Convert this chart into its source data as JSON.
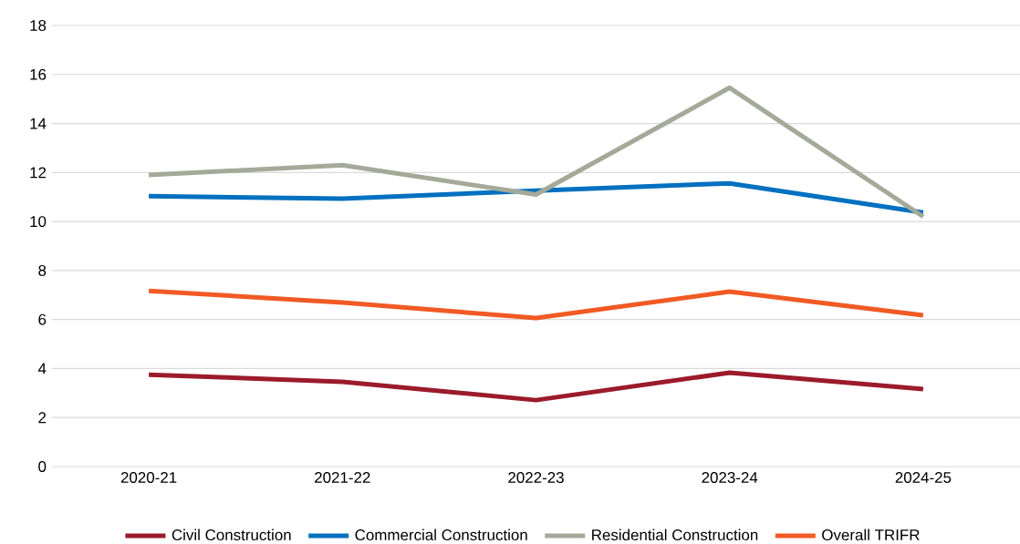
{
  "chart_data": {
    "type": "line",
    "categories": [
      "2020-21",
      "2021-22",
      "2022-23",
      "2023-24",
      "2024-25"
    ],
    "series": [
      {
        "name": "Civil Construction",
        "color": "#9b1b2a",
        "values": [
          3.75,
          3.46,
          2.71,
          3.83,
          3.16
        ]
      },
      {
        "name": "Commercial Construction",
        "color": "#0070c0",
        "values": [
          11.04,
          10.93,
          11.26,
          11.56,
          10.37
        ]
      },
      {
        "name": "Residential Construction",
        "color": "#a5a999",
        "values": [
          11.9,
          12.3,
          11.1,
          15.46,
          10.2
        ]
      },
      {
        "name": "Overall TRIFR",
        "color": "#f15a24",
        "values": [
          7.17,
          6.69,
          6.06,
          7.14,
          6.17
        ]
      }
    ],
    "ylim": [
      0,
      18
    ],
    "yticks": [
      0,
      2,
      4,
      6,
      8,
      10,
      12,
      14,
      16,
      18
    ],
    "grid": "y",
    "legend": "bottom",
    "marker": "none",
    "line_style": "solid"
  }
}
